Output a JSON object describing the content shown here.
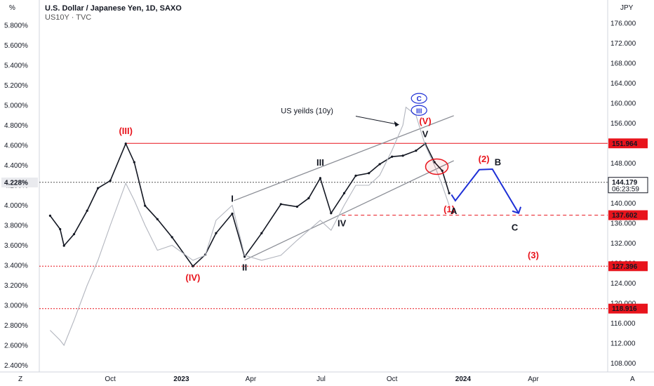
{
  "header": {
    "title": "U.S. Dollar / Japanese Yen, 1D, SAXO",
    "subtitle": "US10Y · TVC"
  },
  "corners": {
    "left_unit": "%",
    "right_unit": "JPY",
    "bottom_left": "Z",
    "bottom_right": "A"
  },
  "chart_data": {
    "type": "line",
    "title": "U.S. Dollar / Japanese Yen, 1D, SAXO",
    "x_ticks": [
      "Oct",
      "2023",
      "Apr",
      "Jul",
      "Oct",
      "2024",
      "Apr"
    ],
    "y_right": {
      "label": "JPY",
      "ticks": [
        "176.000",
        "172.000",
        "168.000",
        "164.000",
        "160.000",
        "156.000",
        "152.000",
        "148.000",
        "144.000",
        "140.000",
        "136.000",
        "132.000",
        "128.000",
        "124.000",
        "120.000",
        "116.000",
        "112.000",
        "108.000"
      ],
      "range": [
        106,
        178
      ]
    },
    "y_left": {
      "label": "%",
      "ticks": [
        "5.800%",
        "5.600%",
        "5.400%",
        "5.200%",
        "5.000%",
        "4.800%",
        "4.600%",
        "4.400%",
        "4.200%",
        "4.000%",
        "3.800%",
        "3.600%",
        "3.400%",
        "3.200%",
        "3.000%",
        "2.800%",
        "2.600%",
        "2.400%"
      ],
      "range": [
        2.3,
        5.9
      ]
    },
    "series": [
      {
        "name": "USDJPY",
        "color": "#131722",
        "x": [
          "2022-07-15",
          "2022-07-28",
          "2022-08-02",
          "2022-08-15",
          "2022-09-01",
          "2022-09-15",
          "2022-10-01",
          "2022-10-21",
          "2022-11-01",
          "2022-11-15",
          "2022-12-01",
          "2022-12-20",
          "2023-01-16",
          "2023-02-01",
          "2023-02-15",
          "2023-03-08",
          "2023-03-24",
          "2023-04-15",
          "2023-05-10",
          "2023-05-31",
          "2023-06-15",
          "2023-06-30",
          "2023-07-14",
          "2023-07-31",
          "2023-08-15",
          "2023-09-01",
          "2023-09-15",
          "2023-10-01",
          "2023-10-15",
          "2023-11-01",
          "2023-11-13",
          "2023-11-25",
          "2023-12-05",
          "2023-12-14"
        ],
        "y": [
          137.5,
          134.8,
          131.5,
          133.8,
          138.5,
          143.0,
          144.5,
          151.9,
          148.2,
          139.5,
          136.8,
          133.2,
          127.4,
          129.7,
          134.0,
          137.9,
          129.3,
          134.0,
          139.8,
          139.3,
          141.0,
          145.0,
          138.0,
          142.0,
          145.5,
          146.0,
          147.8,
          149.3,
          149.5,
          150.5,
          151.9,
          148.2,
          146.5,
          142.0
        ]
      },
      {
        "name": "US yeilds (10y)",
        "color": "#b2b5be",
        "x": [
          "2022-07-15",
          "2022-07-28",
          "2022-08-02",
          "2022-08-15",
          "2022-09-01",
          "2022-09-15",
          "2022-10-01",
          "2022-10-21",
          "2022-11-01",
          "2022-11-15",
          "2022-12-01",
          "2022-12-20",
          "2023-01-16",
          "2023-02-01",
          "2023-02-15",
          "2023-03-08",
          "2023-03-24",
          "2023-04-15",
          "2023-05-10",
          "2023-05-31",
          "2023-06-15",
          "2023-06-30",
          "2023-07-14",
          "2023-07-31",
          "2023-08-15",
          "2023-09-01",
          "2023-09-15",
          "2023-10-01",
          "2023-10-15",
          "2023-10-19",
          "2023-11-01",
          "2023-11-13",
          "2023-11-25",
          "2023-12-05",
          "2023-12-14"
        ],
        "y": [
          2.75,
          2.65,
          2.6,
          2.85,
          3.2,
          3.45,
          3.8,
          4.22,
          4.05,
          3.8,
          3.55,
          3.6,
          3.45,
          3.5,
          3.85,
          4.0,
          3.5,
          3.45,
          3.5,
          3.65,
          3.75,
          3.85,
          3.75,
          4.0,
          4.2,
          4.2,
          4.3,
          4.55,
          4.8,
          4.98,
          4.9,
          4.6,
          4.4,
          4.2,
          4.0
        ]
      }
    ],
    "horizontal_levels": [
      {
        "label": "151.964",
        "value": 151.964,
        "style": "solid"
      },
      {
        "label": "137.602",
        "value": 137.602,
        "style": "dashed"
      },
      {
        "label": "127.396",
        "value": 127.396,
        "style": "dotted"
      },
      {
        "label": "118.916",
        "value": 118.916,
        "style": "dotted"
      }
    ],
    "current_price": {
      "label": "144.179",
      "countdown": "06:23:59",
      "value": 144.179
    },
    "current_yield": {
      "label": "4.228%",
      "value": 4.228
    },
    "wave_labels": [
      {
        "text": "(III)",
        "date": "2022-10-21",
        "price": 153.8,
        "color": "#e8141c"
      },
      {
        "text": "(IV)",
        "date": "2023-01-16",
        "price": 124.5,
        "color": "#e8141c"
      },
      {
        "text": "I",
        "date": "2023-03-08",
        "price": 140.3,
        "color": "#131722"
      },
      {
        "text": "II",
        "date": "2023-03-24",
        "price": 126.5,
        "color": "#131722"
      },
      {
        "text": "III",
        "date": "2023-06-30",
        "price": 147.5,
        "color": "#131722"
      },
      {
        "text": "IV",
        "date": "2023-07-28",
        "price": 135.4,
        "color": "#131722"
      },
      {
        "text": "(V)",
        "date": "2023-11-13",
        "price": 155.8,
        "color": "#e8141c"
      },
      {
        "text": "V",
        "date": "2023-11-13",
        "price": 153.2,
        "color": "#131722"
      },
      {
        "text": "(1)",
        "date": "2023-12-14",
        "price": 138.2,
        "color": "#e8141c"
      },
      {
        "text": "A",
        "date": "2023-12-20",
        "price": 137.8,
        "color": "#131722"
      },
      {
        "text": "(2)",
        "date": "2024-01-28",
        "price": 148.2,
        "color": "#e8141c"
      },
      {
        "text": "B",
        "date": "2024-02-15",
        "price": 147.6,
        "color": "#131722"
      },
      {
        "text": "C",
        "date": "2024-03-08",
        "price": 134.5,
        "color": "#131722"
      },
      {
        "text": "(3)",
        "date": "2024-04-01",
        "price": 129.0,
        "color": "#e8141c"
      },
      {
        "text": "C",
        "date": "2023-11-05",
        "price": 160.4,
        "color": "#1d2fd6"
      },
      {
        "text": "III",
        "date": "2023-11-05",
        "price": 158.0,
        "color": "#1d2fd6"
      }
    ],
    "annotation": {
      "text": "US yeilds (10y)",
      "date": "2023-05-10",
      "price": 158.0
    }
  }
}
